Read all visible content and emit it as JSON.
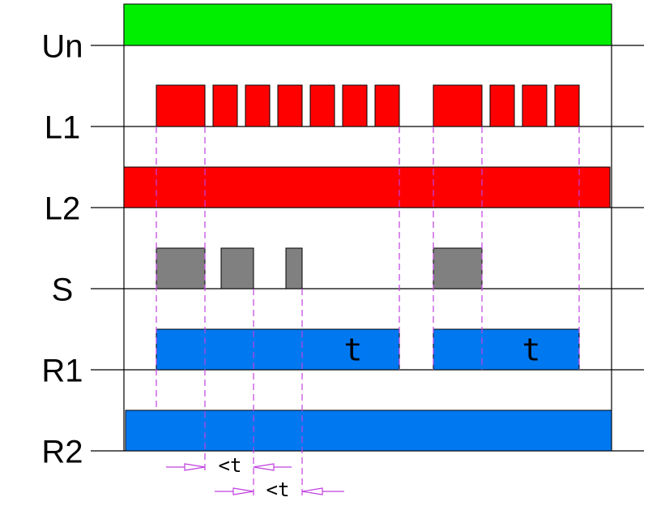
{
  "signals": [
    "Un",
    "L1",
    "L2",
    "S",
    "R1",
    "R2"
  ],
  "timers": [
    "t",
    "t"
  ],
  "intervals": [
    "<t",
    "<t"
  ]
}
